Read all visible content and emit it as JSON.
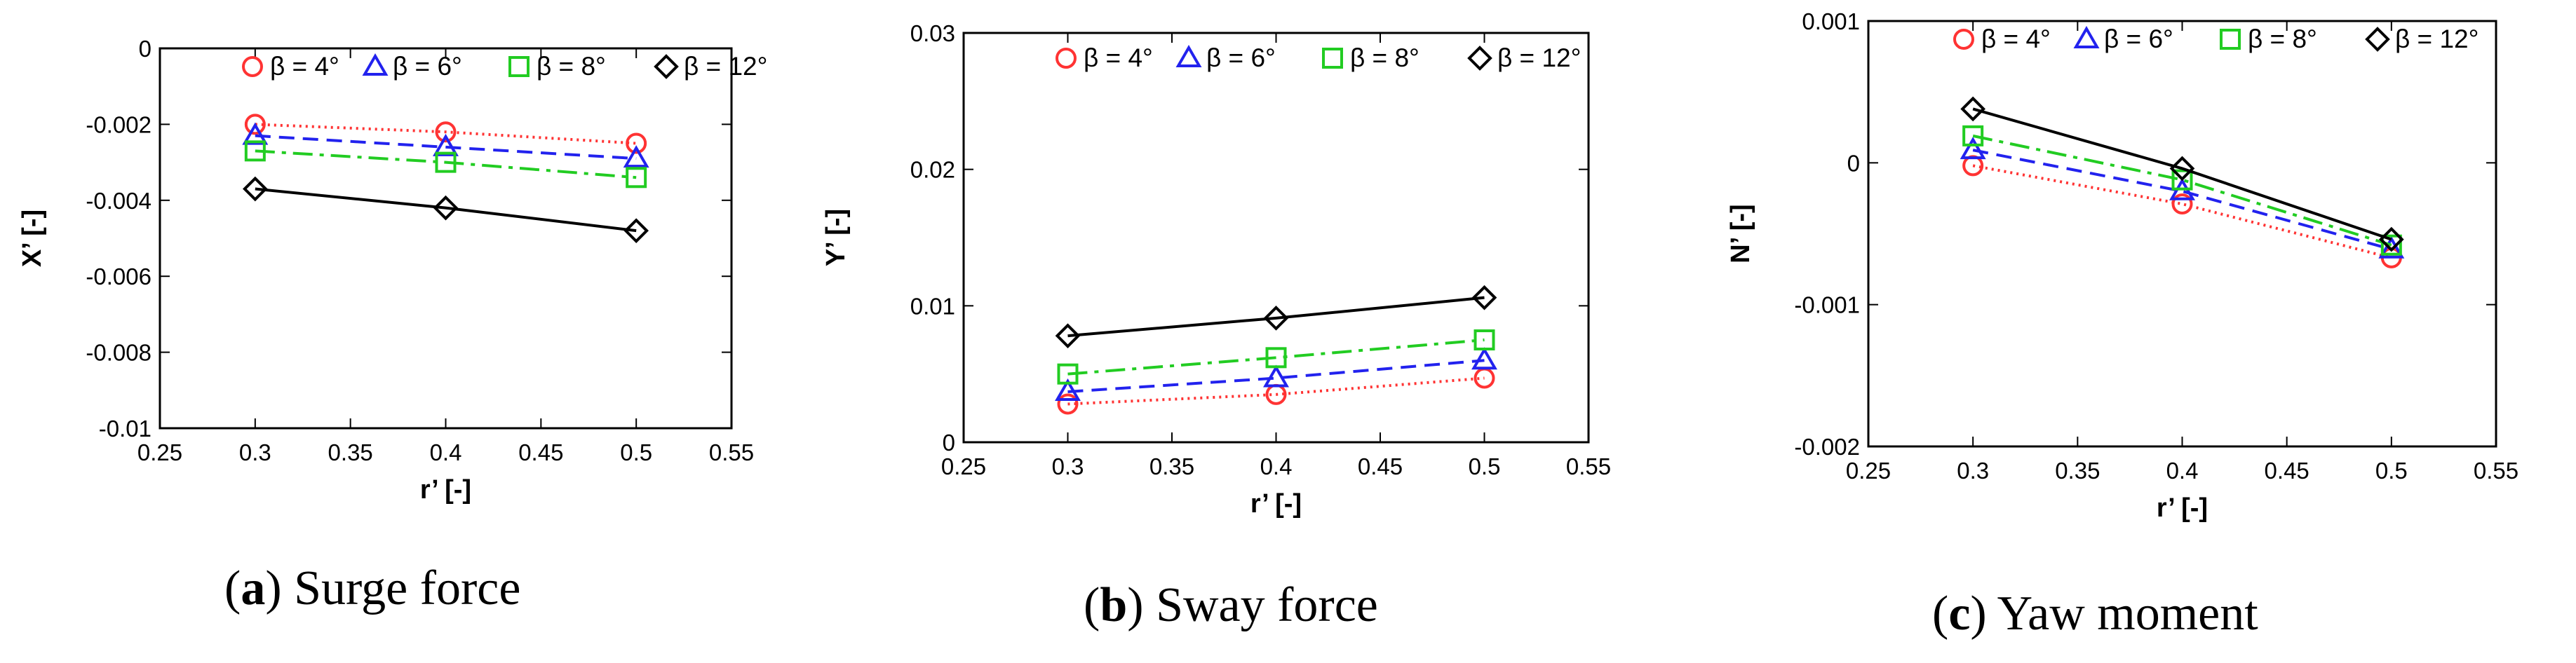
{
  "chart_data": [
    {
      "type": "line",
      "panel": "a",
      "caption_letter": "a",
      "caption_text": "Surge force",
      "xlabel": "r’ [-]",
      "ylabel": "X’ [-]",
      "xlim": [
        0.25,
        0.55
      ],
      "ylim": [
        -0.01,
        0
      ],
      "xticks": [
        0.25,
        0.3,
        0.35,
        0.4,
        0.45,
        0.5,
        0.55
      ],
      "xtick_labels": [
        "0.25",
        "0.3",
        "0.35",
        "0.4",
        "0.45",
        "0.5",
        "0.55"
      ],
      "yticks": [
        0,
        -0.002,
        -0.004,
        -0.006,
        -0.008,
        -0.01
      ],
      "ytick_labels": [
        "0",
        "-0.002",
        "-0.004",
        "-0.006",
        "-0.008",
        "-0.01"
      ],
      "grid": false,
      "legend_position": "top",
      "x": [
        0.3,
        0.4,
        0.5
      ],
      "series": [
        {
          "name": "β = 4°",
          "values": [
            -0.002,
            -0.0022,
            -0.0025
          ],
          "color": "#ff3333",
          "marker": "circle",
          "dash": "dotted"
        },
        {
          "name": "β = 6°",
          "values": [
            -0.0023,
            -0.0026,
            -0.0029
          ],
          "color": "#2222ee",
          "marker": "triangle",
          "dash": "dashed"
        },
        {
          "name": "β = 8°",
          "values": [
            -0.0027,
            -0.003,
            -0.0034
          ],
          "color": "#22cc22",
          "marker": "square",
          "dash": "dashdot"
        },
        {
          "name": "β = 12°",
          "values": [
            -0.0037,
            -0.0042,
            -0.0048
          ],
          "color": "#000000",
          "marker": "diamond",
          "dash": "solid"
        }
      ]
    },
    {
      "type": "line",
      "panel": "b",
      "caption_letter": "b",
      "caption_text": "Sway force",
      "xlabel": "r’ [-]",
      "ylabel": "Y’ [-]",
      "xlim": [
        0.25,
        0.55
      ],
      "ylim": [
        0,
        0.03
      ],
      "xticks": [
        0.25,
        0.3,
        0.35,
        0.4,
        0.45,
        0.5,
        0.55
      ],
      "xtick_labels": [
        "0.25",
        "0.3",
        "0.35",
        "0.4",
        "0.45",
        "0.5",
        "0.55"
      ],
      "yticks": [
        0,
        0.01,
        0.02,
        0.03
      ],
      "ytick_labels": [
        "0",
        "0.01",
        "0.02",
        "0.03"
      ],
      "grid": false,
      "legend_position": "top",
      "x": [
        0.3,
        0.4,
        0.5
      ],
      "series": [
        {
          "name": "β = 4°",
          "values": [
            0.0028,
            0.0035,
            0.0047
          ],
          "color": "#ff3333",
          "marker": "circle",
          "dash": "dotted"
        },
        {
          "name": "β = 6°",
          "values": [
            0.0037,
            0.0047,
            0.006
          ],
          "color": "#2222ee",
          "marker": "triangle",
          "dash": "dashed"
        },
        {
          "name": "β = 8°",
          "values": [
            0.005,
            0.0062,
            0.0075
          ],
          "color": "#22cc22",
          "marker": "square",
          "dash": "dashdot"
        },
        {
          "name": "β = 12°",
          "values": [
            0.0078,
            0.0091,
            0.0106
          ],
          "color": "#000000",
          "marker": "diamond",
          "dash": "solid"
        }
      ]
    },
    {
      "type": "line",
      "panel": "c",
      "caption_letter": "c",
      "caption_text": "Yaw moment",
      "xlabel": "r’ [-]",
      "ylabel": "N’ [-]",
      "xlim": [
        0.25,
        0.55
      ],
      "ylim": [
        -0.002,
        0.001
      ],
      "xticks": [
        0.25,
        0.3,
        0.35,
        0.4,
        0.45,
        0.5,
        0.55
      ],
      "xtick_labels": [
        "0.25",
        "0.3",
        "0.35",
        "0.4",
        "0.45",
        "0.5",
        "0.55"
      ],
      "yticks": [
        0.001,
        0,
        -0.001,
        -0.002
      ],
      "ytick_labels": [
        "0.001",
        "0",
        "-0.001",
        "-0.002"
      ],
      "grid": false,
      "legend_position": "top",
      "x": [
        0.3,
        0.4,
        0.5
      ],
      "series": [
        {
          "name": "β = 4°",
          "values": [
            -2e-05,
            -0.00029,
            -0.00067
          ],
          "color": "#ff3333",
          "marker": "circle",
          "dash": "dotted"
        },
        {
          "name": "β = 6°",
          "values": [
            9e-05,
            -0.0002,
            -0.00061
          ],
          "color": "#2222ee",
          "marker": "triangle",
          "dash": "dashed"
        },
        {
          "name": "β = 8°",
          "values": [
            0.00019,
            -0.00012,
            -0.00058
          ],
          "color": "#22cc22",
          "marker": "square",
          "dash": "dashdot"
        },
        {
          "name": "β = 12°",
          "values": [
            0.00038,
            -4e-05,
            -0.00054
          ],
          "color": "#000000",
          "marker": "diamond",
          "dash": "solid"
        }
      ]
    }
  ]
}
